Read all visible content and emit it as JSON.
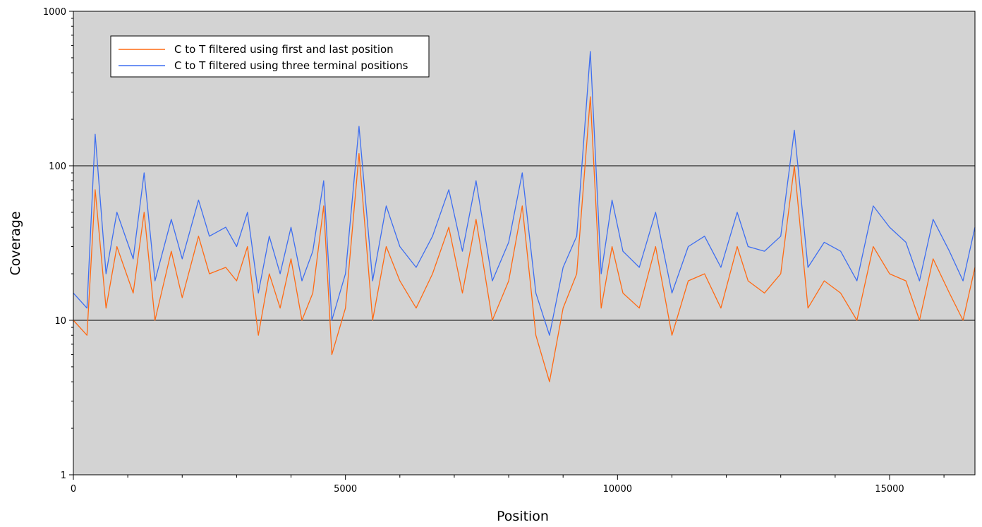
{
  "chart_data": {
    "type": "line",
    "title": "",
    "xlabel": "Position",
    "ylabel": "Coverage",
    "xlim": [
      0,
      16569
    ],
    "ylim": [
      1,
      1000
    ],
    "yscale": "log",
    "grid": "horizontal major lines at decades",
    "legend_position": "top-left",
    "background_color": "#d3d3d3",
    "x_ticks": [
      0,
      5000,
      10000,
      15000
    ],
    "x_tick_labels": [
      "0",
      "5000",
      "10000",
      "15000"
    ],
    "y_ticks": [
      1,
      10,
      100,
      1000
    ],
    "y_tick_labels": [
      "1",
      "10",
      "100",
      "1000"
    ],
    "series": [
      {
        "name": "C to T filtered using first and last position",
        "color": "#ff6a13",
        "x": [
          0,
          250,
          400,
          600,
          800,
          1100,
          1300,
          1500,
          1800,
          2000,
          2300,
          2500,
          2800,
          3000,
          3200,
          3400,
          3600,
          3800,
          4000,
          4200,
          4400,
          4600,
          4750,
          5000,
          5250,
          5500,
          5750,
          6000,
          6300,
          6600,
          6900,
          7150,
          7400,
          7700,
          8000,
          8250,
          8500,
          8750,
          9000,
          9250,
          9500,
          9700,
          9900,
          10100,
          10400,
          10700,
          11000,
          11300,
          11600,
          11900,
          12200,
          12400,
          12700,
          13000,
          13250,
          13500,
          13800,
          14100,
          14400,
          14700,
          15000,
          15300,
          15550,
          15800,
          16100,
          16350,
          16569
        ],
        "values": [
          10,
          8,
          70,
          12,
          30,
          15,
          50,
          10,
          28,
          14,
          35,
          20,
          22,
          18,
          30,
          8,
          20,
          12,
          25,
          10,
          15,
          55,
          6,
          12,
          120,
          10,
          30,
          18,
          12,
          20,
          40,
          15,
          45,
          10,
          18,
          55,
          8,
          4,
          12,
          20,
          280,
          12,
          30,
          15,
          12,
          30,
          8,
          18,
          20,
          12,
          30,
          18,
          15,
          20,
          100,
          12,
          18,
          15,
          10,
          30,
          20,
          18,
          10,
          25,
          15,
          10,
          22
        ]
      },
      {
        "name": "C to T filtered using three terminal positions",
        "color": "#3e6ef0",
        "x": [
          0,
          250,
          400,
          600,
          800,
          1100,
          1300,
          1500,
          1800,
          2000,
          2300,
          2500,
          2800,
          3000,
          3200,
          3400,
          3600,
          3800,
          4000,
          4200,
          4400,
          4600,
          4750,
          5000,
          5250,
          5500,
          5750,
          6000,
          6300,
          6600,
          6900,
          7150,
          7400,
          7700,
          8000,
          8250,
          8500,
          8750,
          9000,
          9250,
          9500,
          9700,
          9900,
          10100,
          10400,
          10700,
          11000,
          11300,
          11600,
          11900,
          12200,
          12400,
          12700,
          13000,
          13250,
          13500,
          13800,
          14100,
          14400,
          14700,
          15000,
          15300,
          15550,
          15800,
          16100,
          16350,
          16569
        ],
        "values": [
          15,
          12,
          160,
          20,
          50,
          25,
          90,
          18,
          45,
          25,
          60,
          35,
          40,
          30,
          50,
          15,
          35,
          20,
          40,
          18,
          28,
          80,
          10,
          20,
          180,
          18,
          55,
          30,
          22,
          35,
          70,
          28,
          80,
          18,
          32,
          90,
          15,
          8,
          22,
          35,
          550,
          20,
          60,
          28,
          22,
          50,
          15,
          30,
          35,
          22,
          50,
          30,
          28,
          35,
          170,
          22,
          32,
          28,
          18,
          55,
          40,
          32,
          18,
          45,
          28,
          18,
          40
        ]
      }
    ]
  }
}
